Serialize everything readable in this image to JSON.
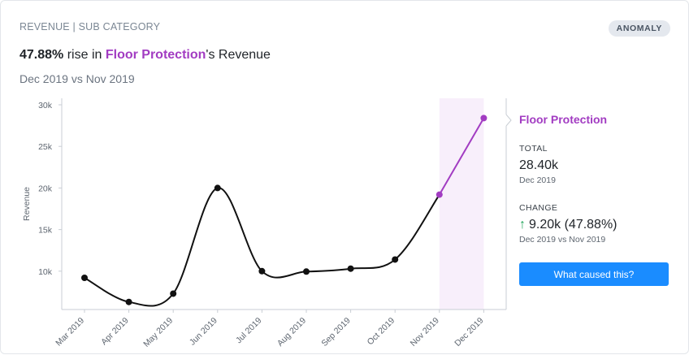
{
  "header": {
    "breadcrumb": "REVENUE | SUB CATEGORY",
    "badge": "ANOMALY",
    "headline_pct": "47.88%",
    "headline_mid": " rise in ",
    "headline_category": "Floor Protection",
    "headline_suffix": "'s Revenue",
    "period": "Dec 2019 vs Nov 2019"
  },
  "side_panel": {
    "title": "Floor Protection",
    "total_label": "TOTAL",
    "total_value": "28.40k",
    "total_period": "Dec 2019",
    "change_label": "CHANGE",
    "change_arrow": "↑",
    "change_value": "9.20k (47.88%)",
    "change_period": "Dec 2019 vs Nov 2019",
    "button_label": "What caused this?"
  },
  "colors": {
    "accent": "#a23cc2",
    "button": "#1a8cff",
    "up": "#22a55a",
    "highlight_band": "#f8effb"
  },
  "chart_data": {
    "type": "line",
    "ylabel": "Revenue",
    "ylim": [
      5000,
      30000
    ],
    "yticks": [
      10000,
      15000,
      20000,
      25000,
      30000
    ],
    "ytick_labels": [
      "10k",
      "15k",
      "20k",
      "25k",
      "30k"
    ],
    "categories": [
      "Mar 2019",
      "Apr 2019",
      "May 2019",
      "Jun 2019",
      "Jul 2019",
      "Aug 2019",
      "Sep 2019",
      "Oct 2019",
      "Nov 2019",
      "Dec 2019"
    ],
    "values": [
      9200,
      6300,
      7300,
      20000,
      10000,
      9950,
      10300,
      11400,
      19200,
      28400
    ],
    "highlight_from": "Nov 2019",
    "highlight_to": "Dec 2019"
  }
}
